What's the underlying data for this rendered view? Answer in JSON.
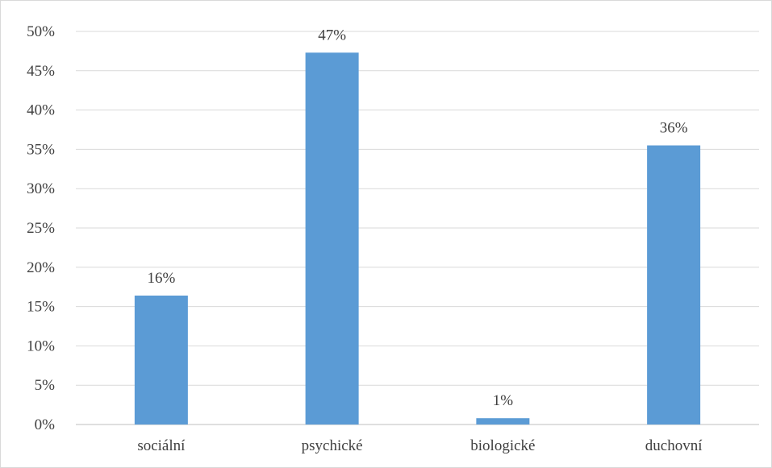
{
  "chart_data": {
    "type": "bar",
    "categories": [
      "sociální",
      "psychické",
      "biologické",
      "duchovní"
    ],
    "values": [
      16.4,
      47.3,
      0.8,
      35.5
    ],
    "data_labels": [
      "16%",
      "47%",
      "1%",
      "36%"
    ],
    "ylim": [
      0,
      50
    ],
    "yticks": [
      0,
      5,
      10,
      15,
      20,
      25,
      30,
      35,
      40,
      45,
      50
    ],
    "ytick_labels": [
      "0%",
      "5%",
      "10%",
      "15%",
      "20%",
      "25%",
      "30%",
      "35%",
      "40%",
      "45%",
      "50%"
    ],
    "grid": true,
    "legend": "none",
    "colors": {
      "bar": "#5b9bd5",
      "grid": "#d9d9d9",
      "axis": "#bfbfbf",
      "text": "#404040"
    }
  }
}
